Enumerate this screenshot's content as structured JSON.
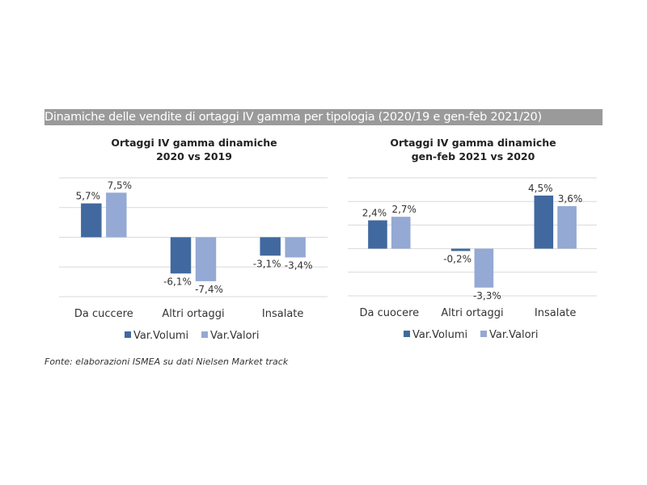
{
  "title": "Dinamiche delle vendite di ortaggi IV gamma per tipologia (2020/19 e gen-feb 2021/20)",
  "source": "Fonte: elaborazioni ISMEA su dati Nielsen Market track",
  "colors": {
    "Var.Volumi": "#41699f",
    "Var.Valori": "#94a9d3",
    "banner": "#9a9a9a"
  },
  "chart_data": [
    {
      "type": "bar",
      "title": "Ortaggi IV gamma dinamiche 2020 vs 2019",
      "title_lines": [
        "Ortaggi IV gamma dinamiche",
        "2020 vs 2019"
      ],
      "categories": [
        "Da cuccere",
        "Altri ortaggi",
        "Insalate"
      ],
      "series": [
        {
          "name": "Var.Volumi",
          "values": [
            5.7,
            -6.1,
            -3.1
          ],
          "labels": [
            "5,7%",
            "-6,1%",
            "-3,1%"
          ]
        },
        {
          "name": "Var.Valori",
          "values": [
            7.5,
            -7.4,
            -3.4
          ],
          "labels": [
            "7,5%",
            "-7,4%",
            "-3,4%"
          ]
        }
      ],
      "ylim": [
        -10,
        10
      ],
      "grid": true,
      "legend": "bottom"
    },
    {
      "type": "bar",
      "title": "Ortaggi IV gamma dinamiche gen-feb 2021 vs 2020",
      "title_lines": [
        "Ortaggi IV gamma dinamiche",
        "gen-feb 2021 vs 2020"
      ],
      "categories": [
        "Da cuocere",
        "Altri ortaggi",
        "Insalate"
      ],
      "series": [
        {
          "name": "Var.Volumi",
          "values": [
            2.4,
            -0.2,
            4.5
          ],
          "labels": [
            "2,4%",
            "-0,2%",
            "4,5%"
          ]
        },
        {
          "name": "Var.Valori",
          "values": [
            2.7,
            -3.3,
            3.6
          ],
          "labels": [
            "2,7%",
            "-3,3%",
            "3,6%"
          ]
        }
      ],
      "ylim": [
        -4,
        6
      ],
      "grid": true,
      "legend": "bottom"
    }
  ]
}
